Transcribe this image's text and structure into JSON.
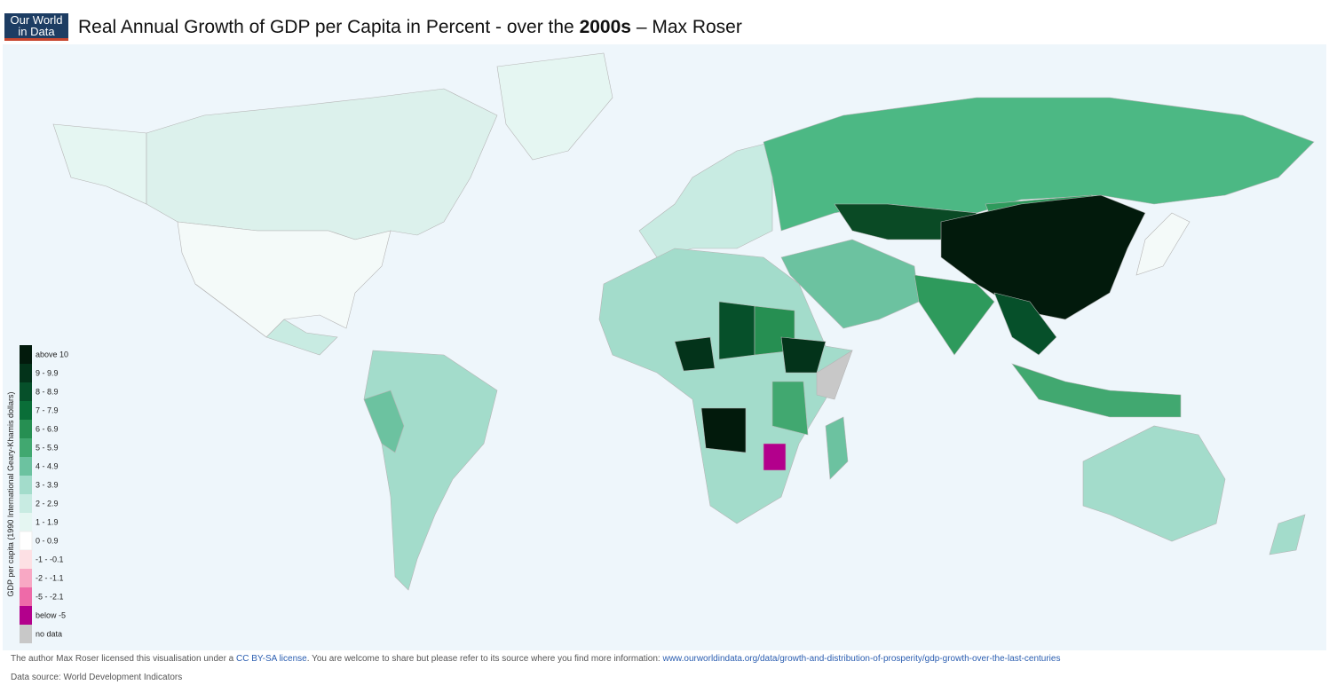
{
  "logo": {
    "line1": "Our World",
    "line2": "in Data"
  },
  "title": {
    "prefix": "Real Annual Growth of GDP per Capita in Percent - over the ",
    "emph": "2000s",
    "suffix": " – Max Roser"
  },
  "legend": {
    "title": "GDP per capita (1990 International Geary-Khamis dollars)",
    "items": [
      {
        "label": "above 10",
        "color": "#021a0c"
      },
      {
        "label": "9 - 9.9",
        "color": "#03331a"
      },
      {
        "label": "8 - 8.9",
        "color": "#06502a"
      },
      {
        "label": "7 - 7.9",
        "color": "#0a6e38"
      },
      {
        "label": "6 - 6.9",
        "color": "#268f52"
      },
      {
        "label": "5 - 5.9",
        "color": "#41a870"
      },
      {
        "label": "4 - 4.9",
        "color": "#6cc2a0"
      },
      {
        "label": "3 - 3.9",
        "color": "#a3dccb"
      },
      {
        "label": "2 - 2.9",
        "color": "#c8ebe2"
      },
      {
        "label": "1 - 1.9",
        "color": "#e5f6f2"
      },
      {
        "label": "0 - 0.9",
        "color": "#ffffff"
      },
      {
        "label": "-1 - -0.1",
        "color": "#fde0e4"
      },
      {
        "label": "-2 - -1.1",
        "color": "#f8a8c4"
      },
      {
        "label": "-5 - -2.1",
        "color": "#ee6aa8"
      },
      {
        "label": "below -5",
        "color": "#b3008c"
      },
      {
        "label": "no data",
        "color": "#c8c8c8"
      }
    ]
  },
  "footer": {
    "text1": "The author Max Roser licensed this visualisation under a ",
    "license": "CC BY-SA license",
    "text2": ". You are welcome to share but please refer to its source where you find more information: ",
    "url": "www.ourworldindata.org/data/growth-and-distribution-of-prosperity/gdp-growth-over-the-last-centuries",
    "source": "Data source: World Development Indicators"
  }
}
